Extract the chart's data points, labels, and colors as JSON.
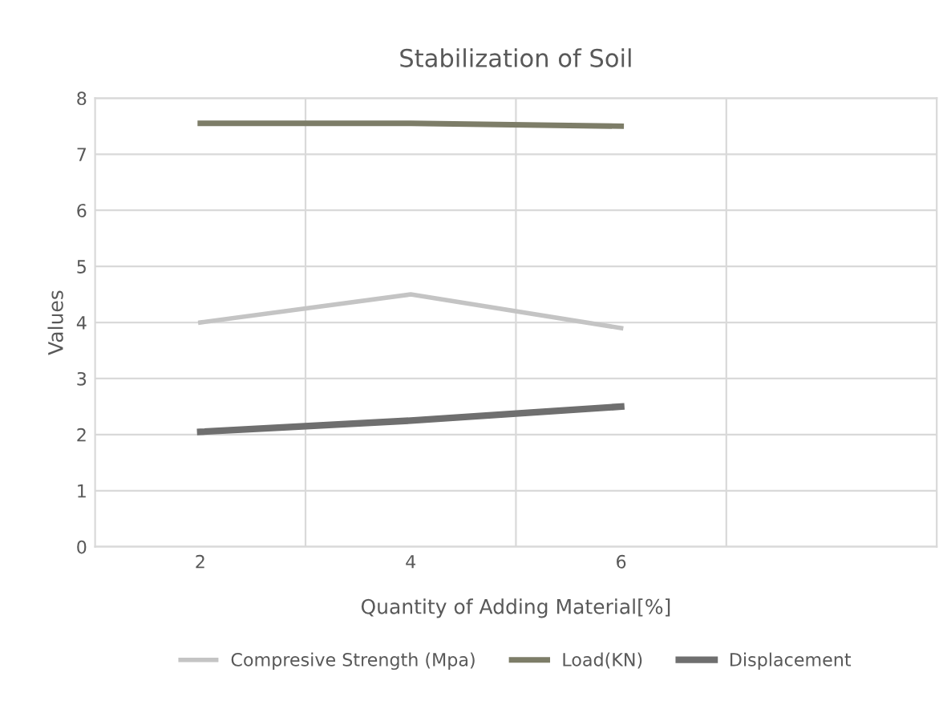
{
  "chart_data": {
    "type": "line",
    "title": "Stabilization of Soil",
    "xlabel": "Quantity of Adding Material[%]",
    "ylabel": "Values",
    "categories": [
      "2",
      "4",
      "6",
      null
    ],
    "series": [
      {
        "name": "Compresive Strength (Mpa)",
        "color": "#c4c4c4",
        "values": [
          4.0,
          4.5,
          3.9,
          null
        ]
      },
      {
        "name": "Load(KN)",
        "color": "#7d7d68",
        "values": [
          7.55,
          7.55,
          7.5,
          null
        ]
      },
      {
        "name": "Displacement",
        "color": "#6f6f6f",
        "values": [
          2.05,
          2.25,
          2.5,
          null
        ]
      }
    ],
    "ylim": [
      0,
      8
    ],
    "yticks": [
      0,
      1,
      2,
      3,
      4,
      5,
      6,
      7,
      8
    ],
    "grid": true,
    "legend": "bottom",
    "marker": "none",
    "line_style": "solid"
  }
}
